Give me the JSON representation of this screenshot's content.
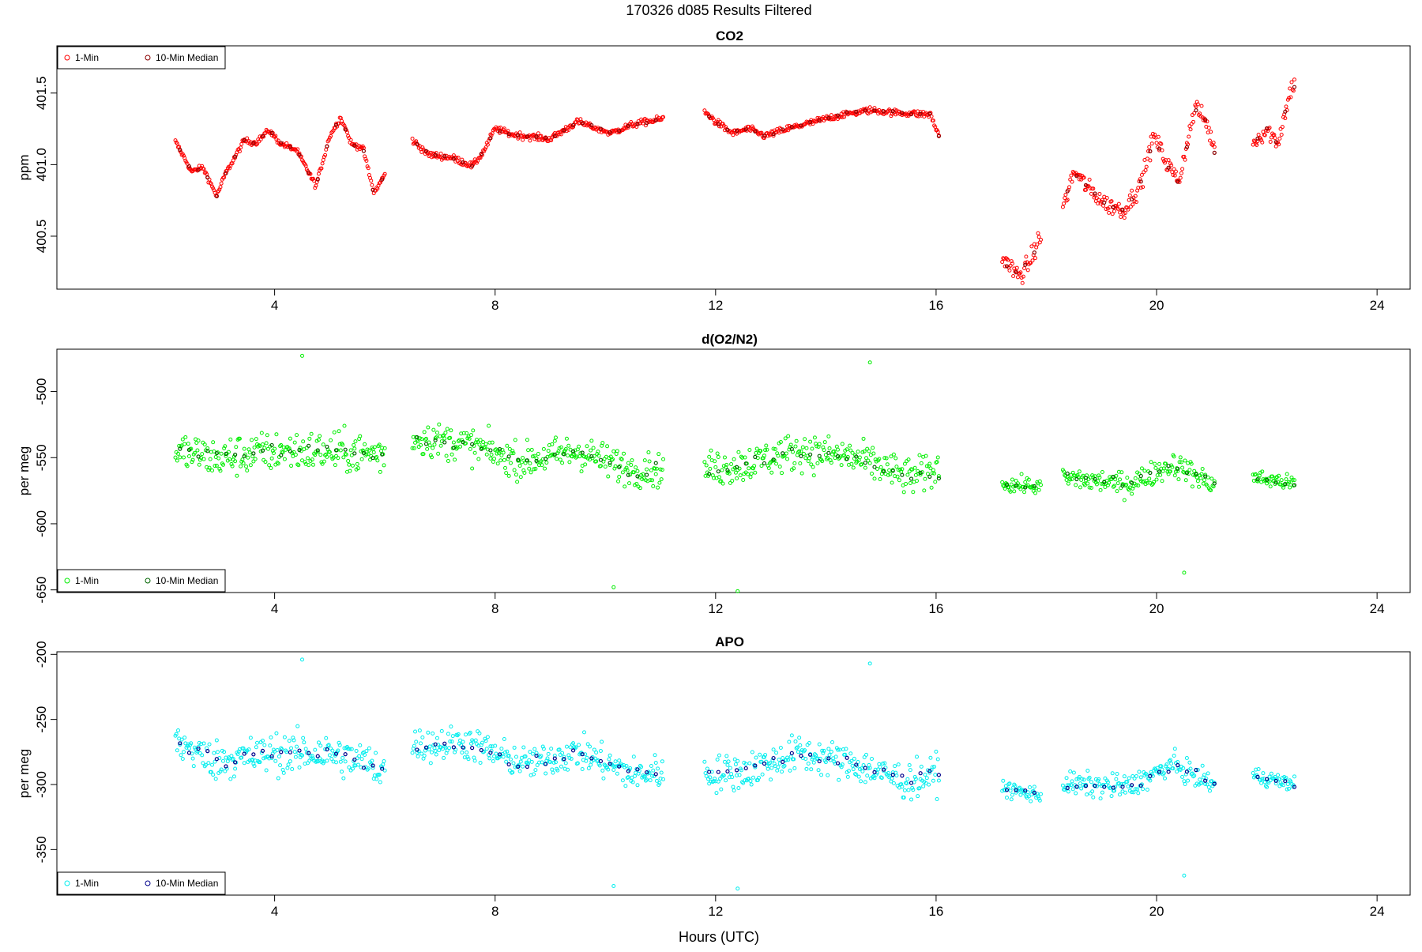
{
  "figure": {
    "title": "170326   d085   Results Filtered",
    "xlabel": "Hours (UTC)"
  },
  "chart_data": [
    {
      "type": "scatter",
      "title": "CO2",
      "ylabel": "ppm",
      "xlim": [
        0.05,
        24.6
      ],
      "ylim": [
        400.13,
        401.83
      ],
      "xticks": [
        4,
        8,
        12,
        16,
        20,
        24
      ],
      "yticks": [
        400.5,
        401.0,
        401.5
      ],
      "ytick_labels": [
        "400.5",
        "401.0",
        "401.5"
      ],
      "grid": false,
      "legend": {
        "position": "top-left",
        "entries": [
          "1-Min",
          "10-Min Median"
        ]
      },
      "colors": {
        "one_min": "#ff0000",
        "median": "#8b0000"
      },
      "series": [
        {
          "name": "1-Min",
          "segments": [
            {
              "x_range": [
                2.2,
                6.0
              ],
              "anchors": [
                [
                  2.2,
                  401.16
                ],
                [
                  2.5,
                  400.95
                ],
                [
                  2.7,
                  400.98
                ],
                [
                  2.95,
                  400.78
                ],
                [
                  3.1,
                  400.93
                ],
                [
                  3.45,
                  401.17
                ],
                [
                  3.65,
                  401.15
                ],
                [
                  3.9,
                  401.24
                ],
                [
                  4.1,
                  401.15
                ],
                [
                  4.4,
                  401.1
                ],
                [
                  4.75,
                  400.85
                ],
                [
                  5.0,
                  401.2
                ],
                [
                  5.2,
                  401.33
                ],
                [
                  5.4,
                  401.14
                ],
                [
                  5.6,
                  401.12
                ],
                [
                  5.8,
                  400.8
                ],
                [
                  6.0,
                  400.93
                ]
              ],
              "noise": 0.025
            },
            {
              "x_range": [
                6.5,
                11.05
              ],
              "anchors": [
                [
                  6.5,
                  401.17
                ],
                [
                  6.8,
                  401.07
                ],
                [
                  7.2,
                  401.05
                ],
                [
                  7.6,
                  400.99
                ],
                [
                  7.8,
                  401.1
                ],
                [
                  8.0,
                  401.25
                ],
                [
                  8.3,
                  401.21
                ],
                [
                  9.0,
                  401.18
                ],
                [
                  9.5,
                  401.3
                ],
                [
                  10.1,
                  401.22
                ],
                [
                  10.5,
                  401.28
                ],
                [
                  11.05,
                  401.32
                ]
              ],
              "noise": 0.03
            },
            {
              "x_range": [
                11.8,
                16.05
              ],
              "anchors": [
                [
                  11.8,
                  401.37
                ],
                [
                  12.0,
                  401.3
                ],
                [
                  12.3,
                  401.22
                ],
                [
                  12.6,
                  401.25
                ],
                [
                  12.9,
                  401.2
                ],
                [
                  13.3,
                  401.25
                ],
                [
                  13.8,
                  401.3
                ],
                [
                  14.3,
                  401.35
                ],
                [
                  14.8,
                  401.38
                ],
                [
                  15.4,
                  401.36
                ],
                [
                  15.9,
                  401.35
                ],
                [
                  16.05,
                  401.2
                ]
              ],
              "noise": 0.03
            },
            {
              "x_range": [
                17.2,
                17.9
              ],
              "anchors": [
                [
                  17.2,
                  400.35
                ],
                [
                  17.5,
                  400.22
                ],
                [
                  17.7,
                  400.32
                ],
                [
                  17.9,
                  400.5
                ]
              ],
              "noise": 0.09
            },
            {
              "x_range": [
                18.3,
                21.05
              ],
              "anchors": [
                [
                  18.3,
                  400.7
                ],
                [
                  18.5,
                  400.95
                ],
                [
                  18.8,
                  400.82
                ],
                [
                  19.1,
                  400.72
                ],
                [
                  19.4,
                  400.68
                ],
                [
                  19.7,
                  400.85
                ],
                [
                  19.95,
                  401.2
                ],
                [
                  20.2,
                  401.0
                ],
                [
                  20.4,
                  400.88
                ],
                [
                  20.7,
                  401.4
                ],
                [
                  20.9,
                  401.3
                ],
                [
                  21.05,
                  401.1
                ]
              ],
              "noise": 0.08
            },
            {
              "x_range": [
                21.75,
                22.5
              ],
              "anchors": [
                [
                  21.75,
                  401.15
                ],
                [
                  22.0,
                  401.25
                ],
                [
                  22.2,
                  401.15
                ],
                [
                  22.45,
                  401.55
                ]
              ],
              "noise": 0.08
            }
          ]
        },
        {
          "name": "10-Min Median",
          "sampled_from": "1-Min",
          "every": 10
        }
      ]
    },
    {
      "type": "scatter",
      "title": "d(O2/N2)",
      "ylabel": "per meg",
      "xlim": [
        0.05,
        24.6
      ],
      "ylim": [
        -652,
        -468
      ],
      "xticks": [
        4,
        8,
        12,
        16,
        20,
        24
      ],
      "yticks": [
        -650,
        -600,
        -550,
        -500
      ],
      "ytick_labels": [
        "-650",
        "-600",
        "-550",
        "-500"
      ],
      "grid": false,
      "legend": {
        "position": "bottom-left",
        "entries": [
          "1-Min",
          "10-Min Median"
        ]
      },
      "colors": {
        "one_min": "#00ee00",
        "median": "#006400"
      },
      "series": [
        {
          "name": "1-Min",
          "segments": [
            {
              "x_range": [
                2.2,
                6.0
              ],
              "anchors": [
                [
                  2.2,
                  -545
                ],
                [
                  3.0,
                  -550
                ],
                [
                  4.0,
                  -545
                ],
                [
                  5.0,
                  -545
                ],
                [
                  6.0,
                  -548
                ]
              ],
              "noise": 20
            },
            {
              "x_range": [
                6.5,
                11.05
              ],
              "anchors": [
                [
                  6.5,
                  -535
                ],
                [
                  7.5,
                  -540
                ],
                [
                  8.5,
                  -553
                ],
                [
                  9.5,
                  -545
                ],
                [
                  10.5,
                  -560
                ],
                [
                  11.05,
                  -558
                ]
              ],
              "noise": 17
            },
            {
              "x_range": [
                11.8,
                16.05
              ],
              "anchors": [
                [
                  11.8,
                  -560
                ],
                [
                  12.5,
                  -555
                ],
                [
                  13.5,
                  -545
                ],
                [
                  14.5,
                  -550
                ],
                [
                  15.5,
                  -565
                ],
                [
                  16.05,
                  -560
                ]
              ],
              "noise": 18
            },
            {
              "x_range": [
                17.2,
                17.9
              ],
              "anchors": [
                [
                  17.2,
                  -570
                ],
                [
                  17.9,
                  -572
                ]
              ],
              "noise": 8
            },
            {
              "x_range": [
                18.3,
                21.05
              ],
              "anchors": [
                [
                  18.3,
                  -565
                ],
                [
                  19.5,
                  -570
                ],
                [
                  20.3,
                  -555
                ],
                [
                  21.05,
                  -570
                ]
              ],
              "noise": 12
            },
            {
              "x_range": [
                21.75,
                22.5
              ],
              "anchors": [
                [
                  21.75,
                  -565
                ],
                [
                  22.5,
                  -570
                ]
              ],
              "noise": 8
            }
          ],
          "outliers": [
            [
              4.5,
              -473
            ],
            [
              14.8,
              -478
            ],
            [
              10.15,
              -648
            ],
            [
              12.4,
              -651
            ],
            [
              20.5,
              -637
            ]
          ]
        },
        {
          "name": "10-Min Median",
          "sampled_from": "1-Min",
          "every": 10
        }
      ]
    },
    {
      "type": "scatter",
      "title": "APO",
      "ylabel": "per meg",
      "xlim": [
        0.05,
        24.6
      ],
      "ylim": [
        -385,
        -198
      ],
      "xticks": [
        4,
        8,
        12,
        16,
        20,
        24
      ],
      "yticks": [
        -350,
        -300,
        -250,
        -200
      ],
      "ytick_labels": [
        "-350",
        "-300",
        "-250",
        "-200"
      ],
      "grid": false,
      "legend": {
        "position": "bottom-left",
        "entries": [
          "1-Min",
          "10-Min Median"
        ]
      },
      "colors": {
        "one_min": "#00eeee",
        "median": "#00008b"
      },
      "series": [
        {
          "name": "1-Min",
          "segments": [
            {
              "x_range": [
                2.2,
                6.0
              ],
              "anchors": [
                [
                  2.2,
                  -268
                ],
                [
                  3.0,
                  -282
                ],
                [
                  4.0,
                  -276
                ],
                [
                  5.0,
                  -276
                ],
                [
                  6.0,
                  -288
                ]
              ],
              "noise": 20
            },
            {
              "x_range": [
                6.5,
                11.05
              ],
              "anchors": [
                [
                  6.5,
                  -270
                ],
                [
                  7.5,
                  -268
                ],
                [
                  8.5,
                  -285
                ],
                [
                  9.5,
                  -275
                ],
                [
                  10.5,
                  -292
                ],
                [
                  11.05,
                  -290
                ]
              ],
              "noise": 17
            },
            {
              "x_range": [
                11.8,
                16.05
              ],
              "anchors": [
                [
                  11.8,
                  -292
                ],
                [
                  12.5,
                  -290
                ],
                [
                  13.5,
                  -276
                ],
                [
                  14.5,
                  -284
                ],
                [
                  15.5,
                  -298
                ],
                [
                  16.05,
                  -290
                ]
              ],
              "noise": 18
            },
            {
              "x_range": [
                17.2,
                17.9
              ],
              "anchors": [
                [
                  17.2,
                  -303
                ],
                [
                  17.9,
                  -308
                ]
              ],
              "noise": 8
            },
            {
              "x_range": [
                18.3,
                21.05
              ],
              "anchors": [
                [
                  18.3,
                  -300
                ],
                [
                  19.5,
                  -302
                ],
                [
                  20.3,
                  -285
                ],
                [
                  21.05,
                  -300
                ]
              ],
              "noise": 12
            },
            {
              "x_range": [
                21.75,
                22.5
              ],
              "anchors": [
                [
                  21.75,
                  -293
                ],
                [
                  22.5,
                  -300
                ]
              ],
              "noise": 8
            }
          ],
          "outliers": [
            [
              4.5,
              -204
            ],
            [
              14.8,
              -207
            ],
            [
              10.15,
              -378
            ],
            [
              12.4,
              -380
            ],
            [
              20.5,
              -370
            ]
          ]
        },
        {
          "name": "10-Min Median",
          "sampled_from": "1-Min",
          "every": 10
        }
      ]
    }
  ]
}
